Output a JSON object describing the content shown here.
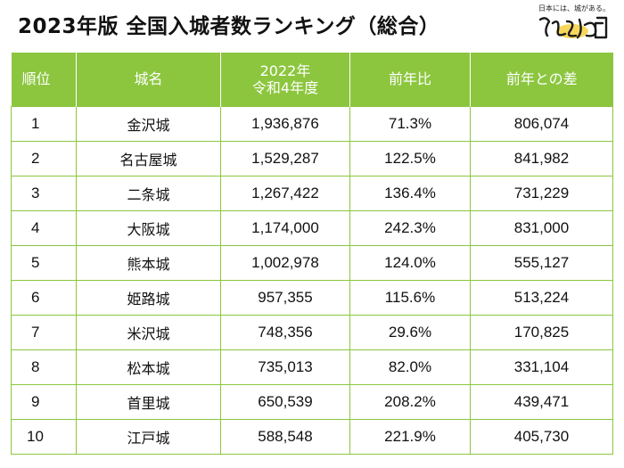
{
  "title": "2023年版 全国入城者数ランキング（総合）",
  "logo": {
    "tagline": "日本には、城がある。",
    "accent": "#f4d03f"
  },
  "colors": {
    "header_bg": "#8cc63f",
    "border": "#8cc63f",
    "header_text": "#ffffff"
  },
  "table": {
    "headers": [
      "順位",
      "城名",
      "2022年",
      "令和4年度",
      "前年比",
      "前年との差"
    ],
    "rows": [
      {
        "rank": "1",
        "name": "金沢城",
        "visitors": "1,936,876",
        "ratio": "71.3%",
        "diff": "806,074"
      },
      {
        "rank": "2",
        "name": "名古屋城",
        "visitors": "1,529,287",
        "ratio": "122.5%",
        "diff": "841,982"
      },
      {
        "rank": "3",
        "name": "二条城",
        "visitors": "1,267,422",
        "ratio": "136.4%",
        "diff": "731,229"
      },
      {
        "rank": "4",
        "name": "大阪城",
        "visitors": "1,174,000",
        "ratio": "242.3%",
        "diff": "831,000"
      },
      {
        "rank": "5",
        "name": "熊本城",
        "visitors": "1,002,978",
        "ratio": "124.0%",
        "diff": "555,127"
      },
      {
        "rank": "6",
        "name": "姫路城",
        "visitors": "957,355",
        "ratio": "115.6%",
        "diff": "513,224"
      },
      {
        "rank": "7",
        "name": "米沢城",
        "visitors": "748,356",
        "ratio": "29.6%",
        "diff": "170,825"
      },
      {
        "rank": "8",
        "name": "松本城",
        "visitors": "735,013",
        "ratio": "82.0%",
        "diff": "331,104"
      },
      {
        "rank": "9",
        "name": "首里城",
        "visitors": "650,539",
        "ratio": "208.2%",
        "diff": "439,471"
      },
      {
        "rank": "10",
        "name": "江戸城",
        "visitors": "588,548",
        "ratio": "221.9%",
        "diff": "405,730"
      }
    ]
  }
}
